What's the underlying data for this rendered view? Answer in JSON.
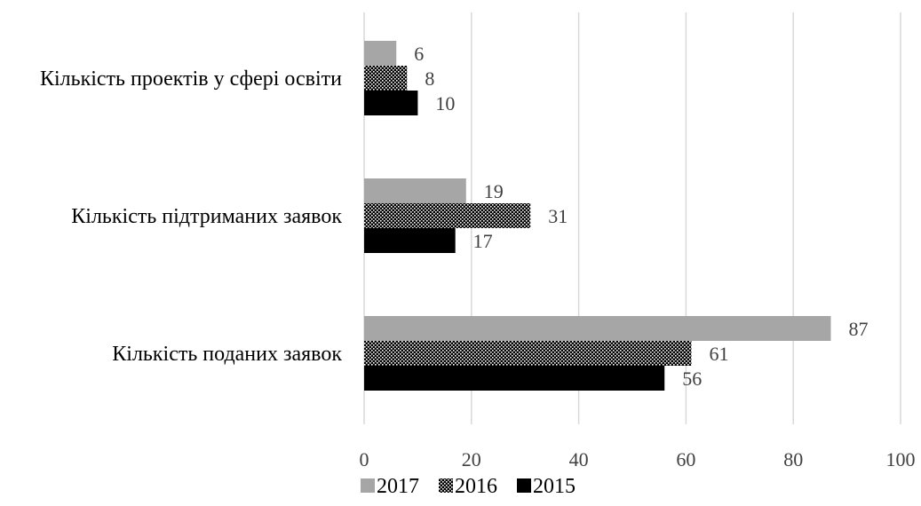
{
  "chart_data": {
    "type": "bar",
    "orientation": "horizontal",
    "categories": [
      "Кількість проектів у сфері освіти",
      "Кількість підтриманих заявок",
      "Кількість поданих заявок"
    ],
    "series": [
      {
        "name": "2017",
        "values": [
          6,
          19,
          87
        ],
        "color": "#a6a6a6",
        "pattern": "solid"
      },
      {
        "name": "2016",
        "values": [
          8,
          31,
          61
        ],
        "color": "#000000",
        "pattern": "dotted"
      },
      {
        "name": "2015",
        "values": [
          10,
          17,
          56
        ],
        "color": "#000000",
        "pattern": "solid"
      }
    ],
    "x_ticks": [
      "0",
      "20",
      "40",
      "60",
      "80",
      "100"
    ],
    "xlim": [
      0,
      100
    ],
    "grid": true,
    "legend": "bottom",
    "title": "",
    "xlabel": "",
    "ylabel": ""
  },
  "colors": {
    "gridline": "#d9d9d9",
    "text": "#404040",
    "category_text": "#000000"
  }
}
